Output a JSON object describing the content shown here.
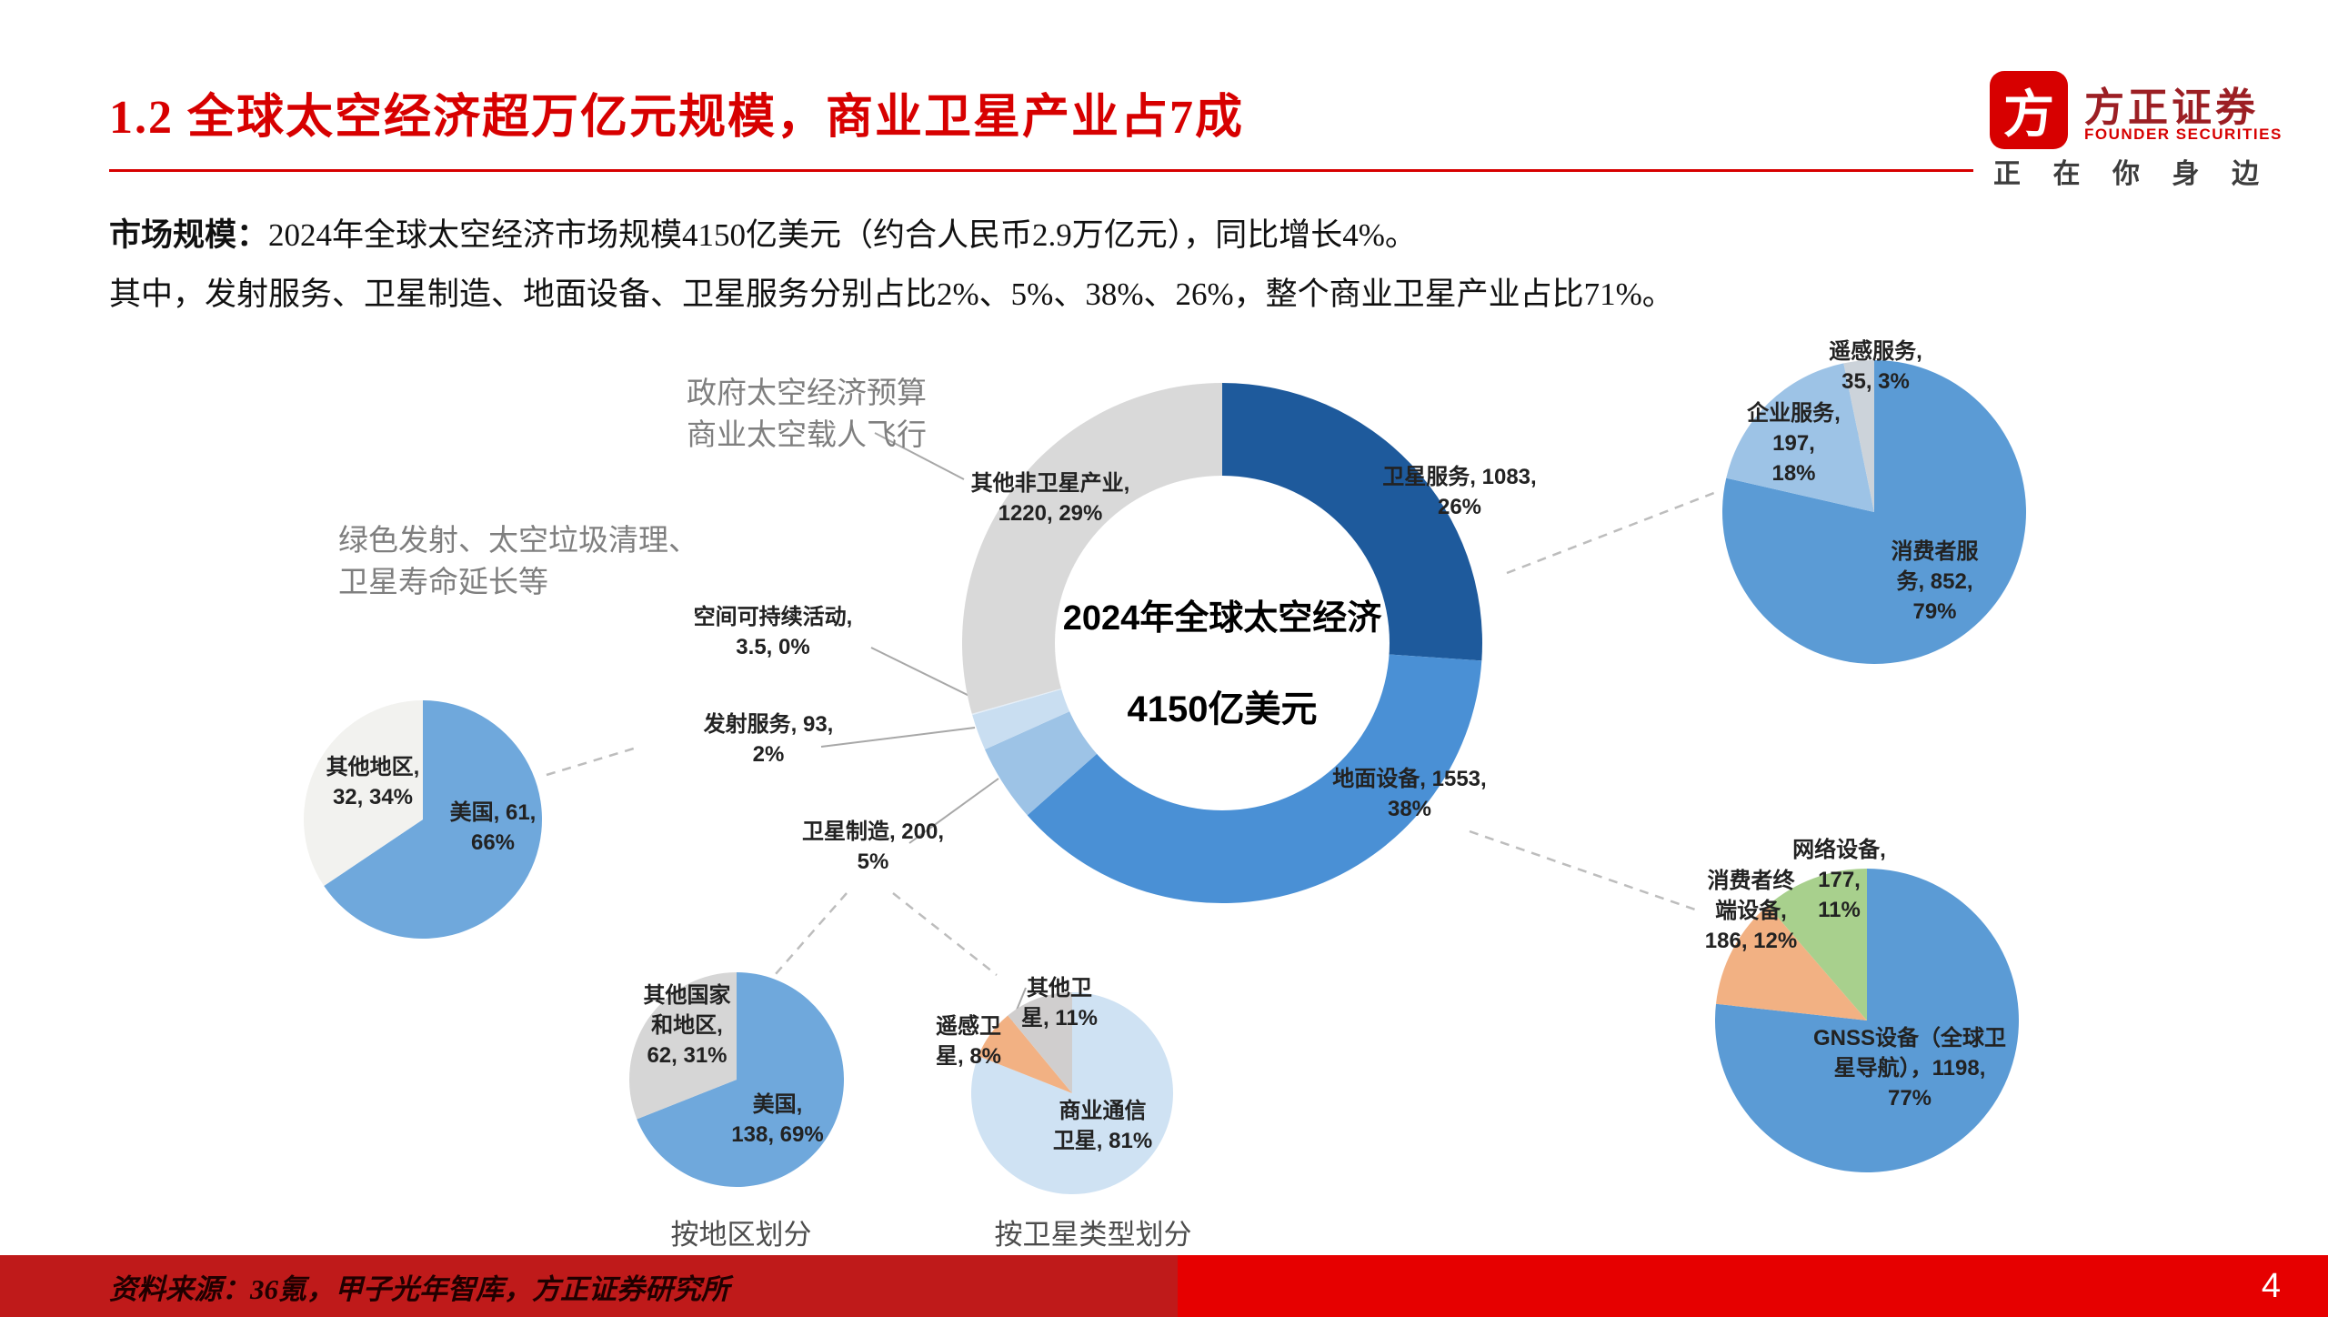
{
  "header": {
    "title": "1.2 全球太空经济超万亿元规模，商业卫星产业占7成",
    "logo": {
      "mark_glyph": "方",
      "name": "方正证券",
      "name_en": "FOUNDER SECURITIES",
      "slogan_chars": [
        "正",
        "在",
        "你",
        "身",
        "边"
      ],
      "brand_red": "#d70000"
    }
  },
  "intro": {
    "label": "市场规模：",
    "line1": "2024年全球太空经济市场规模4150亿美元（约合人民币2.9万亿元），同比增长4%。",
    "line2": "其中，发射服务、卫星制造、地面设备、卫星服务分别占比2%、5%、38%、26%，整个商业卫星产业占比71%。"
  },
  "annotations": {
    "gov_note": "政府太空经济预算\n商业太空载人飞行",
    "sustain_note": "绿色发射、太空垃圾清理、\n卫星寿命延长等"
  },
  "chart_data": [
    {
      "id": "space-economy-donut",
      "type": "donut",
      "title": "2024年全球太空经济",
      "center_label": "4150亿美元",
      "unit": "亿美元",
      "slices": [
        {
          "key": "satellite-services",
          "name": "卫星服务",
          "value": 1083,
          "pct": 26,
          "label": "卫星服务, 1083,\n26%",
          "color": "#1e5a9c"
        },
        {
          "key": "ground-equipment",
          "name": "地面设备",
          "value": 1553,
          "pct": 38,
          "label": "地面设备, 1553,\n38%",
          "color": "#4a90d5"
        },
        {
          "key": "satellite-manufacturing",
          "name": "卫星制造",
          "value": 200,
          "pct": 5,
          "label": "卫星制造, 200,\n5%",
          "color": "#9dc3e6"
        },
        {
          "key": "launch-services",
          "name": "发射服务",
          "value": 93,
          "pct": 2,
          "label": "发射服务, 93,\n2%",
          "color": "#c9def1"
        },
        {
          "key": "space-sustainability",
          "name": "空间可持续活动",
          "value": 3.5,
          "pct": 0,
          "label": "空间可持续活动,\n3.5, 0%",
          "color": "#e4eef8"
        },
        {
          "key": "other-non-satellite",
          "name": "其他非卫星产业",
          "value": 1220,
          "pct": 29,
          "label": "其他非卫星产业,\n1220, 29%",
          "color": "#d9d9d9"
        }
      ]
    },
    {
      "id": "satellite-services-pie",
      "type": "pie",
      "slices": [
        {
          "key": "consumer-services",
          "name": "消费者服务",
          "value": 852,
          "pct": 79,
          "label": "消费者服\n务, 852,\n79%",
          "color": "#5b9bd5"
        },
        {
          "key": "enterprise-services",
          "name": "企业服务",
          "value": 197,
          "pct": 18,
          "label": "企业服务,\n197,\n18%",
          "color": "#9dc3e6"
        },
        {
          "key": "remote-sensing-services",
          "name": "遥感服务",
          "value": 35,
          "pct": 3,
          "label": "遥感服务,\n35, 3%",
          "color": "#ccd3da"
        }
      ]
    },
    {
      "id": "ground-equipment-pie",
      "type": "pie",
      "slices": [
        {
          "key": "gnss-equipment",
          "name": "GNSS设备（全球卫星导航）",
          "value": 1198,
          "pct": 77,
          "label": "GNSS设备（全球卫\n星导航），1198,\n77%",
          "color": "#5b9bd5"
        },
        {
          "key": "consumer-terminal-equipment",
          "name": "消费者终端设备",
          "value": 186,
          "pct": 12,
          "label": "消费者终\n端设备,\n186, 12%",
          "color": "#f2b183"
        },
        {
          "key": "network-equipment",
          "name": "网络设备",
          "value": 177,
          "pct": 11,
          "label": "网络设备,\n177,\n11%",
          "color": "#a8d08d"
        }
      ]
    },
    {
      "id": "launch-services-by-region-pie",
      "type": "pie",
      "slices": [
        {
          "key": "usa",
          "name": "美国",
          "value": 61,
          "pct": 66,
          "label": "美国, 61,\n66%",
          "color": "#6fa8dc"
        },
        {
          "key": "other-regions",
          "name": "其他地区",
          "value": 32,
          "pct": 34,
          "label": "其他地区,\n32, 34%",
          "color": "#f2f2ef"
        }
      ]
    },
    {
      "id": "satellite-manufacturing-by-region-pie",
      "type": "pie",
      "caption": "按地区划分",
      "slices": [
        {
          "key": "usa",
          "name": "美国",
          "value": 138,
          "pct": 69,
          "label": "美国,\n138, 69%",
          "color": "#6fa8dc"
        },
        {
          "key": "other-countries",
          "name": "其他国家和地区",
          "value": 62,
          "pct": 31,
          "label": "其他国家\n和地区,\n62, 31%",
          "color": "#d6d6d6"
        }
      ]
    },
    {
      "id": "satellite-manufacturing-by-type-pie",
      "type": "pie",
      "caption": "按卫星类型划分",
      "slices": [
        {
          "key": "commercial-comm-satellites",
          "name": "商业通信卫星",
          "pct": 81,
          "label": "商业通信\n卫星, 81%",
          "color": "#cfe2f3"
        },
        {
          "key": "remote-sensing-satellites",
          "name": "遥感卫星",
          "pct": 8,
          "label": "遥感卫\n星, 8%",
          "color": "#f2b183"
        },
        {
          "key": "other-satellites",
          "name": "其他卫星",
          "pct": 11,
          "label": "其他卫\n星, 11%",
          "color": "#d0cece"
        }
      ]
    }
  ],
  "footer": {
    "source": "资料来源：36氪，甲子光年智库，方正证券研究所",
    "page_number": "4"
  }
}
